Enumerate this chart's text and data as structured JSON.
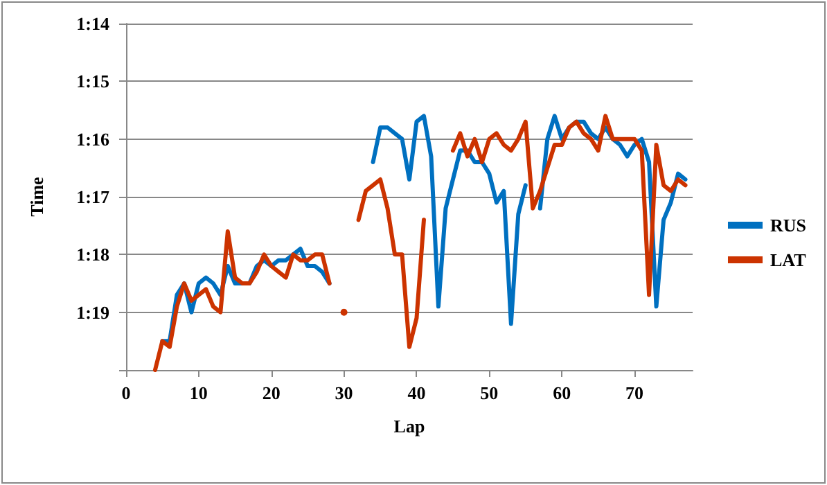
{
  "chart_data": {
    "type": "line",
    "xlabel": "Lap",
    "ylabel": "Time",
    "x": [
      4,
      5,
      6,
      7,
      8,
      9,
      10,
      11,
      12,
      13,
      14,
      15,
      16,
      17,
      18,
      19,
      20,
      21,
      22,
      23,
      24,
      25,
      26,
      27,
      28,
      29,
      30,
      31,
      32,
      33,
      34,
      35,
      36,
      37,
      38,
      39,
      40,
      41,
      42,
      43,
      44,
      45,
      46,
      47,
      48,
      49,
      50,
      51,
      52,
      53,
      54,
      55,
      56,
      57,
      58,
      59,
      60,
      61,
      62,
      63,
      64,
      65,
      66,
      67,
      68,
      69,
      70,
      71,
      72,
      73,
      74,
      75,
      76,
      77
    ],
    "series": [
      {
        "name": "RUS",
        "color": "#0070c0",
        "values": [
          null,
          79.5,
          79.5,
          78.7,
          78.5,
          79.0,
          78.5,
          78.4,
          78.5,
          78.7,
          78.2,
          78.5,
          78.5,
          78.5,
          78.2,
          78.1,
          78.2,
          78.1,
          78.1,
          78.0,
          77.9,
          78.2,
          78.2,
          78.3,
          78.5,
          null,
          null,
          null,
          null,
          null,
          76.4,
          75.8,
          75.8,
          75.9,
          76.0,
          76.7,
          75.7,
          75.6,
          76.3,
          78.9,
          77.2,
          76.7,
          76.2,
          76.2,
          76.4,
          76.4,
          76.6,
          77.1,
          76.9,
          79.2,
          77.3,
          76.8,
          null,
          77.2,
          76.0,
          75.6,
          76.0,
          75.8,
          75.7,
          75.7,
          75.9,
          76.0,
          75.8,
          76.0,
          76.1,
          76.3,
          76.1,
          76.0,
          76.4,
          78.9,
          77.4,
          77.1,
          76.6,
          76.7
        ]
      },
      {
        "name": "LAT",
        "color": "#cc3300",
        "values": [
          80,
          79.5,
          79.6,
          78.9,
          78.5,
          78.8,
          78.7,
          78.6,
          78.9,
          79.0,
          77.6,
          78.4,
          78.5,
          78.5,
          78.3,
          78.0,
          78.2,
          78.3,
          78.4,
          78.0,
          78.1,
          78.1,
          78.0,
          78.0,
          78.5,
          null,
          79.0,
          null,
          77.4,
          76.9,
          76.8,
          76.7,
          77.2,
          78.0,
          78.0,
          79.6,
          79.1,
          77.4,
          null,
          null,
          null,
          76.2,
          75.9,
          76.3,
          76.0,
          76.4,
          76.0,
          75.9,
          76.1,
          76.2,
          76.0,
          75.7,
          77.2,
          76.9,
          76.5,
          76.1,
          76.1,
          75.8,
          75.7,
          75.9,
          76.0,
          76.2,
          75.6,
          76.0,
          76.0,
          76.0,
          76.0,
          76.2,
          78.7,
          76.1,
          76.8,
          76.9,
          76.7,
          76.8
        ]
      }
    ],
    "xlim": [
      0,
      78
    ],
    "xticks": [
      0,
      10,
      20,
      30,
      40,
      50,
      60,
      70
    ],
    "ylim": [
      80,
      74
    ],
    "yticks": [
      {
        "value": 74,
        "label": "1:14"
      },
      {
        "value": 75,
        "label": "1:15"
      },
      {
        "value": 76,
        "label": "1:16"
      },
      {
        "value": 77,
        "label": "1:17"
      },
      {
        "value": 78,
        "label": "1:18"
      },
      {
        "value": 79,
        "label": "1:19"
      },
      {
        "value": 80,
        "label": null
      }
    ],
    "grid": "y",
    "legend": "right",
    "marker": "none",
    "line_style": "solid"
  }
}
